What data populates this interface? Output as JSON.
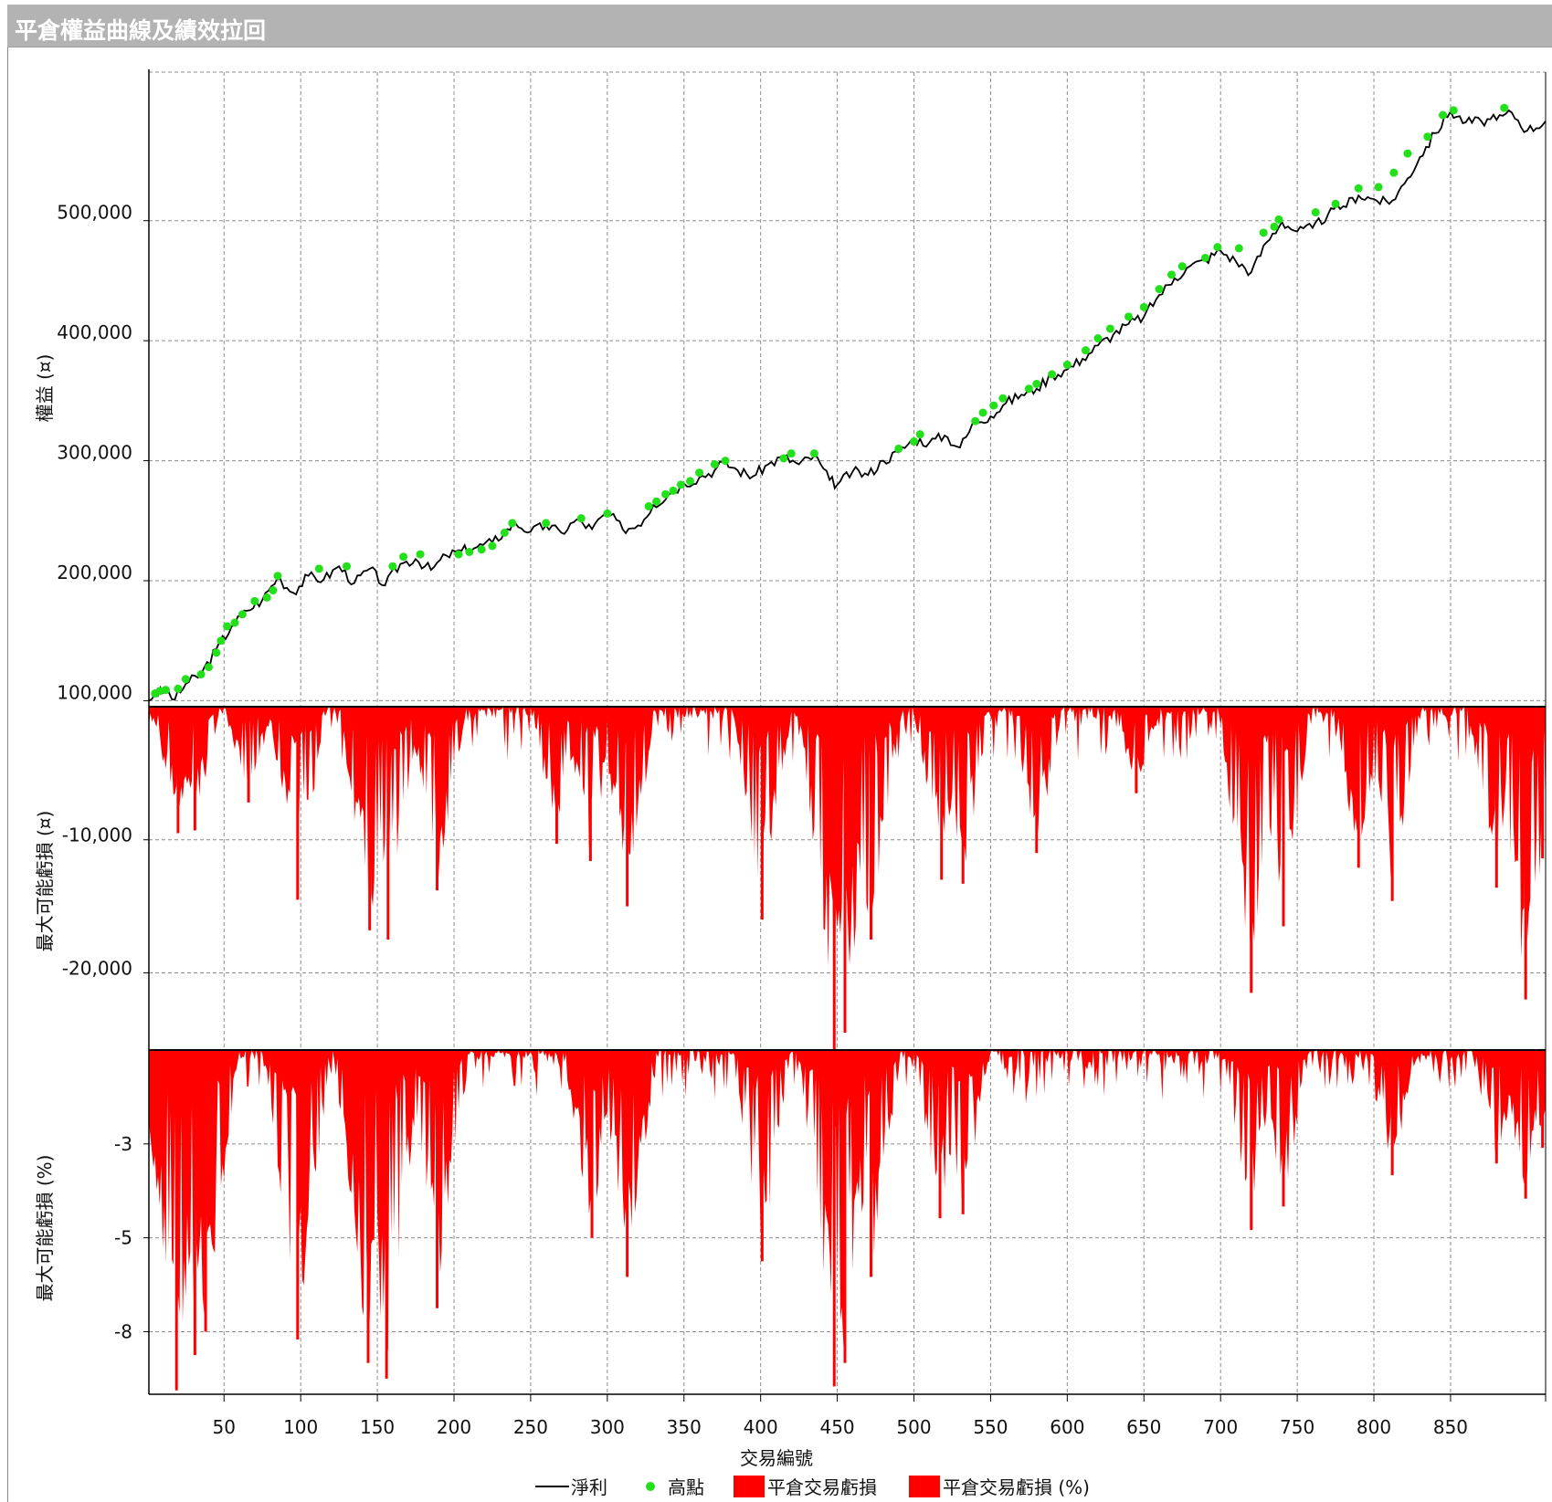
{
  "window": {
    "title": "平倉權益曲線及績效拉回"
  },
  "colors": {
    "equity_line": "#000000",
    "high_points": "#22e01a",
    "drawdown_fill": "#ff0000",
    "grid": "#8c8c8c"
  },
  "axes": {
    "equity_ylabel": "權益 (¤)",
    "dd_abs_ylabel": "最大可能虧損 (¤)",
    "dd_pct_ylabel": "最大可能虧損 (%)",
    "xlabel": "交易編號",
    "equity_ticks": [
      "100,000",
      "200,000",
      "300,000",
      "400,000",
      "500,000"
    ],
    "dd_abs_ticks": [
      "-10,000",
      "-20,000"
    ],
    "dd_pct_ticks": [
      "-3",
      "-5",
      "-8"
    ],
    "x_ticks": [
      "50",
      "100",
      "150",
      "200",
      "250",
      "300",
      "350",
      "400",
      "450",
      "500",
      "550",
      "600",
      "650",
      "700",
      "750",
      "800",
      "850"
    ]
  },
  "legend": [
    {
      "label": "淨利",
      "symbol": "line"
    },
    {
      "label": "高點",
      "symbol": "dot"
    },
    {
      "label": "平倉交易虧損",
      "symbol": "box"
    },
    {
      "label": "平倉交易虧損 (%)",
      "symbol": "box"
    }
  ],
  "chart_data": [
    {
      "type": "line",
      "xlim": [
        1,
        912
      ],
      "ylim": [
        95000,
        600000
      ],
      "series": [
        {
          "name": "淨利",
          "x": [
            1,
            5,
            12,
            18,
            25,
            35,
            45,
            55,
            65,
            75,
            85,
            95,
            105,
            115,
            125,
            135,
            145,
            155,
            165,
            175,
            185,
            195,
            205,
            215,
            225,
            235,
            240,
            250,
            260,
            270,
            280,
            290,
            300,
            310,
            320,
            330,
            340,
            350,
            360,
            370,
            375,
            385,
            395,
            405,
            415,
            425,
            435,
            445,
            450,
            460,
            470,
            480,
            490,
            500,
            510,
            520,
            530,
            540,
            550,
            560,
            570,
            580,
            590,
            600,
            610,
            620,
            630,
            640,
            650,
            660,
            670,
            680,
            690,
            700,
            710,
            720,
            730,
            740,
            750,
            760,
            770,
            780,
            790,
            800,
            810,
            820,
            830,
            840,
            850,
            860,
            870,
            880,
            890,
            900,
            912
          ],
          "values": [
            100000,
            106000,
            108000,
            101000,
            114000,
            122000,
            143000,
            162000,
            175000,
            184000,
            203000,
            190000,
            204000,
            201000,
            212000,
            198000,
            210000,
            196000,
            214000,
            218000,
            209000,
            221000,
            225000,
            228000,
            232000,
            243000,
            248000,
            241000,
            246000,
            240000,
            251000,
            243000,
            257000,
            243000,
            246000,
            263000,
            272000,
            281000,
            286000,
            292000,
            299000,
            292000,
            287000,
            297000,
            303000,
            297000,
            304000,
            284000,
            280000,
            291000,
            288000,
            300000,
            307000,
            318000,
            315000,
            321000,
            311000,
            333000,
            337000,
            348000,
            355000,
            360000,
            371000,
            376000,
            385000,
            396000,
            405000,
            414000,
            420000,
            438000,
            452000,
            462000,
            467000,
            475000,
            466000,
            457000,
            482000,
            499000,
            491000,
            494000,
            505000,
            512000,
            521000,
            518000,
            514000,
            531000,
            553000,
            573000,
            591000,
            582000,
            583000,
            584000,
            590000,
            575000,
            583000
          ]
        }
      ],
      "high_points": {
        "name": "高點",
        "x": [
          5,
          8,
          12,
          20,
          25,
          35,
          40,
          45,
          48,
          52,
          57,
          62,
          70,
          78,
          82,
          85,
          112,
          130,
          160,
          167,
          178,
          203,
          210,
          218,
          225,
          233,
          238,
          260,
          283,
          300,
          327,
          332,
          338,
          343,
          348,
          354,
          360,
          370,
          377,
          415,
          420,
          435,
          490,
          500,
          504,
          540,
          545,
          552,
          558,
          575,
          580,
          590,
          600,
          612,
          620,
          628,
          640,
          650,
          660,
          668,
          675,
          690,
          698,
          712,
          728,
          735,
          738,
          762,
          775,
          790,
          803,
          813,
          822,
          835,
          845,
          852,
          885
        ],
        "values": [
          106000,
          108000,
          109000,
          110000,
          118000,
          122000,
          128000,
          140000,
          150000,
          162000,
          165000,
          172000,
          183000,
          186000,
          192000,
          204000,
          210000,
          212000,
          212000,
          220000,
          222000,
          222000,
          224000,
          226000,
          229000,
          240000,
          248000,
          248000,
          252000,
          256000,
          262000,
          266000,
          272000,
          275000,
          280000,
          283000,
          290000,
          297000,
          300000,
          302000,
          306000,
          306000,
          310000,
          316000,
          322000,
          333000,
          340000,
          346000,
          352000,
          360000,
          364000,
          372000,
          380000,
          392000,
          402000,
          410000,
          420000,
          428000,
          443000,
          455000,
          462000,
          469000,
          478000,
          477000,
          490000,
          495000,
          501000,
          507000,
          514000,
          527000,
          528000,
          540000,
          556000,
          570000,
          588000,
          592000,
          594000
        ]
      }
    },
    {
      "type": "area",
      "series": [
        {
          "name": "平倉交易虧損"
        }
      ],
      "ylim": [
        -25800,
        0
      ],
      "valleys": [
        {
          "x": 20,
          "y": -9500
        },
        {
          "x": 31,
          "y": -9300
        },
        {
          "x": 66,
          "y": -7200
        },
        {
          "x": 98,
          "y": -14500
        },
        {
          "x": 145,
          "y": -16800
        },
        {
          "x": 157,
          "y": -17500
        },
        {
          "x": 189,
          "y": -13800
        },
        {
          "x": 267,
          "y": -10300
        },
        {
          "x": 289,
          "y": -11600
        },
        {
          "x": 313,
          "y": -15000
        },
        {
          "x": 401,
          "y": -16000
        },
        {
          "x": 448,
          "y": -25800
        },
        {
          "x": 455,
          "y": -24500
        },
        {
          "x": 472,
          "y": -17500
        },
        {
          "x": 518,
          "y": -13000
        },
        {
          "x": 532,
          "y": -13300
        },
        {
          "x": 580,
          "y": -11000
        },
        {
          "x": 645,
          "y": -6500
        },
        {
          "x": 720,
          "y": -21500
        },
        {
          "x": 741,
          "y": -16500
        },
        {
          "x": 790,
          "y": -12100
        },
        {
          "x": 812,
          "y": -14600
        },
        {
          "x": 880,
          "y": -13600
        },
        {
          "x": 899,
          "y": -22000
        },
        {
          "x": 910,
          "y": -11400
        }
      ]
    },
    {
      "type": "area",
      "series": [
        {
          "name": "平倉交易虧損 (%)"
        }
      ],
      "ylim": [
        -8.8,
        0
      ],
      "valleys": [
        {
          "x": 19,
          "y": -8.7
        },
        {
          "x": 31,
          "y": -7.8
        },
        {
          "x": 38,
          "y": -7.2
        },
        {
          "x": 98,
          "y": -7.4
        },
        {
          "x": 144,
          "y": -8.0
        },
        {
          "x": 156,
          "y": -8.4
        },
        {
          "x": 189,
          "y": -6.6
        },
        {
          "x": 290,
          "y": -4.8
        },
        {
          "x": 313,
          "y": -5.8
        },
        {
          "x": 401,
          "y": -5.4
        },
        {
          "x": 448,
          "y": -8.6
        },
        {
          "x": 455,
          "y": -8.0
        },
        {
          "x": 472,
          "y": -5.8
        },
        {
          "x": 517,
          "y": -4.3
        },
        {
          "x": 532,
          "y": -4.2
        },
        {
          "x": 720,
          "y": -4.6
        },
        {
          "x": 741,
          "y": -4.0
        },
        {
          "x": 812,
          "y": -3.2
        },
        {
          "x": 880,
          "y": -2.9
        },
        {
          "x": 899,
          "y": -3.8
        },
        {
          "x": 910,
          "y": -2.5
        }
      ]
    }
  ]
}
